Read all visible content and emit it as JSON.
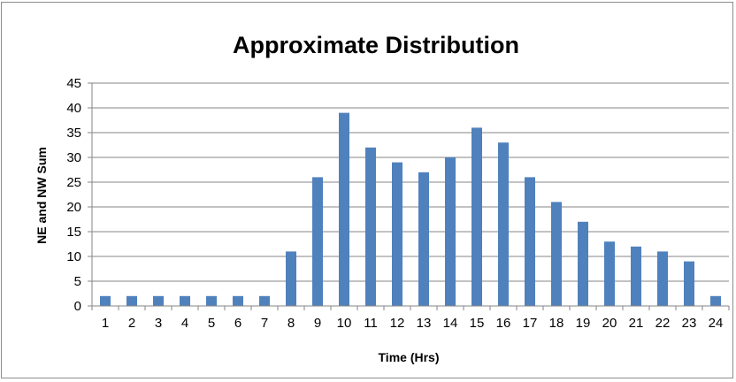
{
  "chart_data": {
    "type": "bar",
    "title": "Approximate Distribution",
    "xlabel": "Time (Hrs)",
    "ylabel": "NE and NW Sum",
    "categories": [
      "1",
      "2",
      "3",
      "4",
      "5",
      "6",
      "7",
      "8",
      "9",
      "10",
      "11",
      "12",
      "13",
      "14",
      "15",
      "16",
      "17",
      "18",
      "19",
      "20",
      "21",
      "22",
      "23",
      "24"
    ],
    "values": [
      2,
      2,
      2,
      2,
      2,
      2,
      2,
      11,
      26,
      39,
      32,
      29,
      27,
      30,
      36,
      33,
      26,
      21,
      17,
      13,
      12,
      11,
      9,
      2
    ],
    "ylim": [
      0,
      45
    ],
    "yticks": [
      0,
      5,
      10,
      15,
      20,
      25,
      30,
      35,
      40,
      45
    ],
    "grid": true,
    "legend": "none",
    "bar_color": "#4f81bd"
  }
}
